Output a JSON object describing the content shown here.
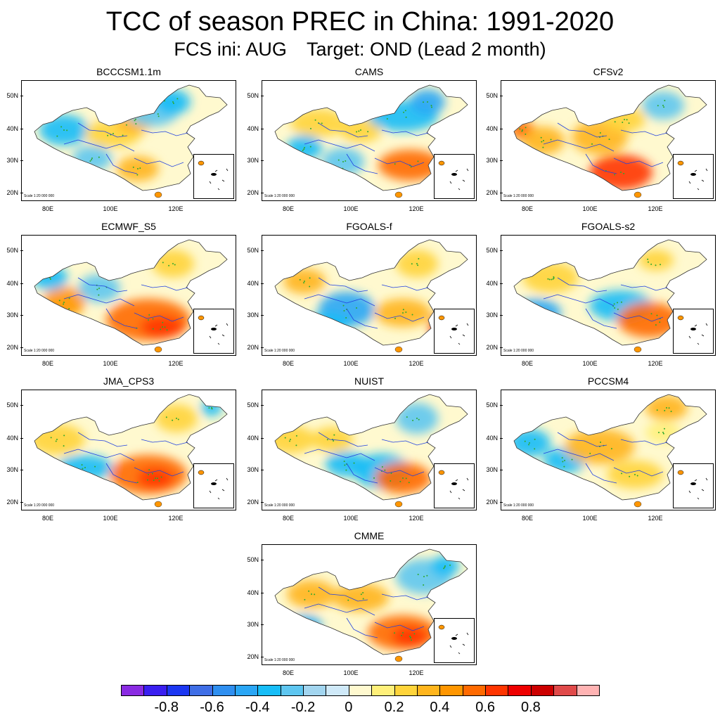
{
  "figure": {
    "title": "TCC of season PREC in China: 1991-2020",
    "subtitle_left": "FCS ini: AUG",
    "subtitle_right": "Target: OND (Lead 2 month)"
  },
  "panels": [
    {
      "name": "BCCCSM1.1m",
      "scale": "Scale 1:20 000 000"
    },
    {
      "name": "CAMS",
      "scale": "Scale 1:20 000 000"
    },
    {
      "name": "CFSv2",
      "scale": "Scale 1:20 000 000"
    },
    {
      "name": "ECMWF_S5",
      "scale": "Scale 1:20 000 000"
    },
    {
      "name": "FGOALS-f",
      "scale": "Scale 1:20 000 000"
    },
    {
      "name": "FGOALS-s2",
      "scale": "Scale 1:20 000 000"
    },
    {
      "name": "JMA_CPS3",
      "scale": "Scale 1:20 000 000"
    },
    {
      "name": "NUIST",
      "scale": "Scale 1:20 000 000"
    },
    {
      "name": "PCCSM4",
      "scale": "Scale 1:20 000 000"
    },
    {
      "name": "CMME",
      "scale": "Scale 1:20 000 000"
    }
  ],
  "axes": {
    "lat_labels": [
      "50N",
      "40N",
      "30N",
      "20N"
    ],
    "lon_labels": [
      "80E",
      "100E",
      "120E"
    ]
  },
  "colorbar": {
    "labels": [
      "-0.8",
      "-0.6",
      "-0.4",
      "-0.2",
      "0",
      "0.2",
      "0.4",
      "0.6",
      "0.8"
    ],
    "colors": [
      "#8a2be2",
      "#3a1ff0",
      "#1c37f2",
      "#3f6ee6",
      "#2f8ff0",
      "#2aa6f5",
      "#17bdf7",
      "#5ec6f0",
      "#a2d5ef",
      "#cfe9f8",
      "#fff9cf",
      "#fff07a",
      "#ffd43a",
      "#ffb51d",
      "#ff9600",
      "#ff6a00",
      "#ff3500",
      "#ee0000",
      "#cc0000",
      "#e04a4a",
      "#ffb3b3"
    ]
  }
}
